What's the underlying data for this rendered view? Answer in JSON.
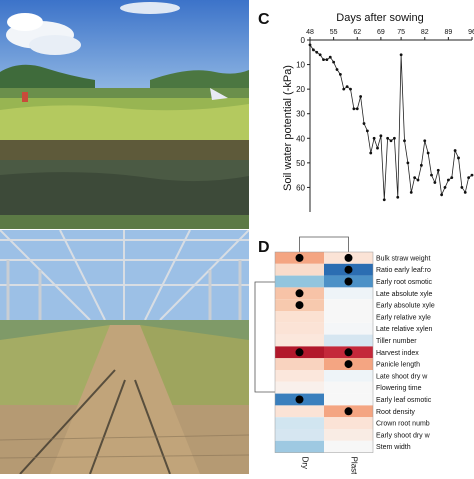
{
  "panels": {
    "c_letter": "C",
    "d_letter": "D"
  },
  "chart_data": [
    {
      "type": "line",
      "panel": "C",
      "title": "Days after sowing",
      "xlabel": "Days after sowing",
      "ylabel": "Soil water potential (-kPa)",
      "x_ticks": [
        48,
        55,
        62,
        69,
        75,
        82,
        89,
        96
      ],
      "y_ticks": [
        0,
        10,
        20,
        30,
        40,
        50,
        60
      ],
      "xlim": [
        48,
        96
      ],
      "ylim": [
        0,
        70
      ],
      "x_axis_position": "top",
      "y_inverted": true,
      "grid": false,
      "x": [
        48,
        49,
        50,
        51,
        52,
        53,
        54,
        55,
        56,
        57,
        58,
        59,
        60,
        61,
        62,
        63,
        64,
        65,
        66,
        67,
        68,
        69,
        70,
        71,
        72,
        73,
        74,
        75,
        76,
        77,
        78,
        79,
        80,
        81,
        82,
        83,
        84,
        85,
        86,
        87,
        88,
        89,
        90,
        91,
        92,
        93,
        94,
        95,
        96
      ],
      "y": [
        2,
        4,
        5,
        6,
        8,
        8,
        7,
        9,
        12,
        14,
        20,
        19,
        20,
        28,
        28,
        23,
        34,
        37,
        46,
        40,
        44,
        39,
        65,
        40,
        41,
        40,
        64,
        6,
        41,
        50,
        62,
        56,
        57,
        51,
        41,
        46,
        55,
        58,
        53,
        63,
        60,
        57,
        56,
        45,
        48,
        60,
        62,
        56,
        55
      ]
    },
    {
      "type": "heatmap",
      "panel": "D",
      "columns": [
        "Dry",
        "Plasticity"
      ],
      "rows": [
        {
          "label": "Bulk straw weight",
          "dry": "#f4a582",
          "plasticity": "#fbe3d6",
          "dry_dot": true,
          "plasticity_dot": true
        },
        {
          "label": "Ratio early leaf:ro",
          "dry": "#f9dccb",
          "plasticity": "#2b6db2",
          "dry_dot": false,
          "plasticity_dot": true
        },
        {
          "label": "Early root osmotic",
          "dry": "#92c5de",
          "plasticity": "#4c91c7",
          "dry_dot": false,
          "plasticity_dot": true
        },
        {
          "label": "Late absolute xyle",
          "dry": "#f7c3a7",
          "plasticity": "#eef4f8",
          "dry_dot": true,
          "plasticity_dot": false
        },
        {
          "label": "Early absolute xyle",
          "dry": "#f7c9ae",
          "plasticity": "#f7f7f7",
          "dry_dot": true,
          "plasticity_dot": false
        },
        {
          "label": "Early relative xyle",
          "dry": "#fbe1d2",
          "plasticity": "#f7f7f7",
          "dry_dot": false,
          "plasticity_dot": false
        },
        {
          "label": "Late relative xylen",
          "dry": "#fbe3d6",
          "plasticity": "#f4f6f8",
          "dry_dot": false,
          "plasticity_dot": false
        },
        {
          "label": "Tiller number",
          "dry": "#fbe7dc",
          "plasticity": "#d6e6f1",
          "dry_dot": false,
          "plasticity_dot": false
        },
        {
          "label": "Harvest index",
          "dry": "#b2182b",
          "plasticity": "#c4283a",
          "dry_dot": true,
          "plasticity_dot": true
        },
        {
          "label": "Panicle length",
          "dry": "#f9d3bf",
          "plasticity": "#f4a582",
          "dry_dot": false,
          "plasticity_dot": true
        },
        {
          "label": "Late shoot dry w",
          "dry": "#fbe7dc",
          "plasticity": "#eef4f8",
          "dry_dot": false,
          "plasticity_dot": false
        },
        {
          "label": "Flowering time",
          "dry": "#f9f0eb",
          "plasticity": "#f7f7f7",
          "dry_dot": false,
          "plasticity_dot": false
        },
        {
          "label": "Early leaf osmotic",
          "dry": "#3a7fbd",
          "plasticity": "#f7f7f7",
          "dry_dot": true,
          "plasticity_dot": false
        },
        {
          "label": "Root density",
          "dry": "#fbe3d6",
          "plasticity": "#f4a582",
          "dry_dot": false,
          "plasticity_dot": true
        },
        {
          "label": "Crown root numb",
          "dry": "#d1e5f0",
          "plasticity": "#fbe3d6",
          "dry_dot": false,
          "plasticity_dot": false
        },
        {
          "label": "Early shoot dry w",
          "dry": "#d6e6f1",
          "plasticity": "#f9ece4",
          "dry_dot": false,
          "plasticity_dot": false
        },
        {
          "label": "Stem width",
          "dry": "#9ec9e2",
          "plasticity": "#f7f7f7",
          "dry_dot": false,
          "plasticity_dot": false
        }
      ]
    }
  ]
}
